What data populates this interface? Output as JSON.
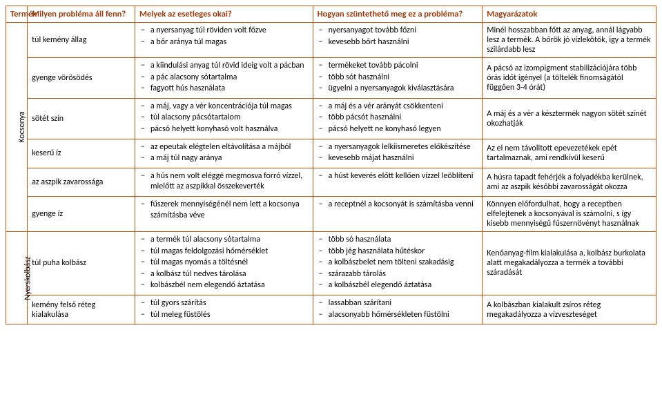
{
  "headers": {
    "product": "Termék",
    "problem": "Milyen probléma áll fenn?",
    "causes": "Melyek az esetleges okai?",
    "fix": "Hogyan szüntethető meg ez a probléma?",
    "explain": "Magyarázatok"
  },
  "groups": [
    {
      "name": "Kocsonya",
      "rowspan": 6
    },
    {
      "name": "Nyerskolbász",
      "rowspan": 2
    }
  ],
  "rows": [
    {
      "problem": "túl kemény állag",
      "causes": [
        "a nyersanyag  túl röviden volt főzve",
        "a bőr aránya túl magas"
      ],
      "fix": [
        "nyersanyagot tovább főzni",
        "kevesebb bőrt használni"
      ],
      "explain": "Minél hosszabban főtt az anyag, annál lágyabb lesz a termék. A bőrök  jó vízlekötők, igy a termék szilárdabb lesz"
    },
    {
      "problem": "gyenge vörösödés",
      "causes": [
        "a kiindulási anyag túl rövid ideig volt a pácban",
        "a pác alacsony sótartalma",
        "fagyott hús használata"
      ],
      "fix": [
        "termékeket tovább pácolni",
        "több sót használni",
        "ügyelni a nyersanyagok kiválasztására"
      ],
      "explain": "A pácsó az izompigment stabilizációjára több órás időt igényel (a töltelék finomságától függően 3-4 órát)"
    },
    {
      "problem": "sötét szín",
      "causes": [
        "a máj, vagy a vér koncentrációja túl magas",
        "túl alacsony pácsótartalom",
        "pácsó helyett konyhasó volt használva"
      ],
      "fix": [
        "a máj és a vér arányát csökkenteni",
        "több pácsót használni",
        "pácsó helyett ne konyhasó legyen"
      ],
      "explain": "A máj és a vér a késztermék nagyon sötét színét okozhatják"
    },
    {
      "problem": "keserű íz",
      "causes": [
        "az epeutak elégtelen eltávolítása a májból",
        "a máj túl nagy aránya"
      ],
      "fix": [
        "a nyersanyagok lelkiismeretes előkészítése",
        "kevesebb májat használni"
      ],
      "explain": "Az el nem távolitott epevezetékek  epét tartalmaznak, ami rendkívül keserű"
    },
    {
      "problem": "az aszpik zavarossága",
      "causes": [
        "a hús nem volt eléggé megmosva forró vízzel, mielőtt az aszpikkal összekeverték"
      ],
      "fix": [
        "a húst keverés előtt kellően vízzel leöblíteni"
      ],
      "explain": "A húsra tapadt fehérjék a folyadékba kerülnek, ami az aszpik későbbi zavarosságát okozza"
    },
    {
      "problem": "gyenge íz",
      "causes": [
        "fűszerek mennyiségénél nem lett a kocsonya számításba véve"
      ],
      "fix": [
        "a receptnél  a kocsonyát is számításba venni"
      ],
      "explain": "Könnyen előfordulhat, hogy a receptben elfelejtenek  a kocsonyával is számolni, s így kisebb mennyiségű fűszernövényt használnak"
    },
    {
      "problem": "túl puha kolbász",
      "causes": [
        "a termék túl alacsony sótartalma",
        "túl magas feldolgozási hőmérséklet",
        "túl magas nyomás a töltésnél",
        "a kolbász túl nedves tárolása",
        "kolbászbél nem elegendő  áztatása"
      ],
      "fix": [
        "több só használata",
        "több jég használata hűtéskor",
        "a kolbászbelet nem tölteni szakadásig",
        "szárazabb tárolás",
        "a kolbászbél elegendő áztatása"
      ],
      "explain": "Kenőanyag-film kialakulása a, kolbász burkolata alatt megakadályozza a termék a további száradását"
    },
    {
      "problem": "kemény felső réteg kialakulása",
      "causes": [
        "túl gyors szárítás",
        "túl meleg füstölés"
      ],
      "fix": [
        "lassabban szárítani",
        "alacsonyabb hőmérsékleten füstölni"
      ],
      "explain": "A kolbászban kialakult zsíros réteg megakadályozza a vízveszteséget"
    }
  ]
}
